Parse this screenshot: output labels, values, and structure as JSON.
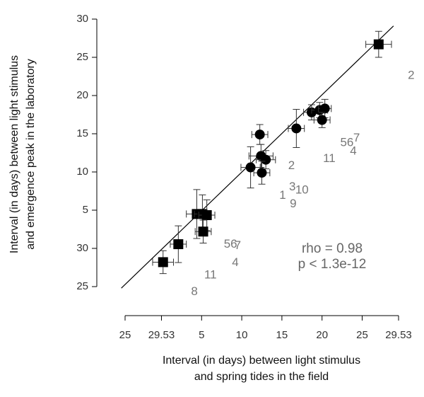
{
  "chart_data": {
    "type": "scatter",
    "x_label": [
      "Interval (in days) between light stimulus",
      "and spring tides in the field"
    ],
    "y_label": [
      "Interval (in days) between light stimulus",
      "and emergence peak in the laboratory"
    ],
    "xlim": [
      -4.53,
      29.53
    ],
    "ylim": [
      -5,
      30
    ],
    "xticks": [
      {
        "value": -4.53,
        "label": "25"
      },
      {
        "value": 0,
        "label": "29.53"
      },
      5,
      10,
      15,
      20,
      25,
      {
        "value": 29.53,
        "label": "29.53"
      }
    ],
    "yticks": [
      {
        "value": -5,
        "label": "25"
      },
      {
        "value": 0,
        "label": "30"
      },
      5,
      10,
      15,
      20,
      25,
      30
    ],
    "series": [
      {
        "marker": "circle",
        "color": "#000000",
        "x": [
          12.25,
          16.8,
          18.7,
          19.7,
          20.35,
          20.0,
          12.4,
          13.0,
          11.1,
          12.5
        ],
        "values": [
          14.9,
          15.7,
          17.8,
          18.1,
          18.3,
          16.8,
          12.1,
          11.6,
          10.6,
          9.9
        ],
        "xerr": [
          1.0,
          1.0,
          1.0,
          1.0,
          0.8,
          1.0,
          1.5,
          1.2,
          1.2,
          1.0
        ],
        "yerr": [
          1.3,
          2.5,
          1.0,
          1.0,
          1.2,
          1.0,
          1.5,
          1.2,
          2.7,
          1.5
        ]
      },
      {
        "marker": "square",
        "color": "#000000",
        "x": [
          27.05,
          4.4,
          5.1,
          5.65,
          5.2,
          2.1,
          0.2
        ],
        "values": [
          26.7,
          4.5,
          4.5,
          4.35,
          2.2,
          0.55,
          -1.8
        ],
        "xerr": [
          1.6,
          1.3,
          1.0,
          1.0,
          1.0,
          1.0,
          1.3
        ],
        "yerr": [
          1.7,
          3.2,
          2.5,
          2.0,
          1.5,
          2.4,
          1.5
        ]
      }
    ],
    "fit_line": {
      "x": [
        -5,
        28.9
      ],
      "y": [
        -5.2,
        29.1
      ],
      "color": "#000000"
    },
    "point_labels": [
      {
        "text": "2",
        "x": 31.1,
        "y": 22.6
      },
      {
        "text": "2",
        "x": 16.2,
        "y": 10.8
      },
      {
        "text": "56",
        "x": 23.1,
        "y": 13.8
      },
      {
        "text": "7",
        "x": 24.3,
        "y": 14.4
      },
      {
        "text": "4",
        "x": 23.9,
        "y": 12.7
      },
      {
        "text": "11",
        "x": 20.9,
        "y": 11.7
      },
      {
        "text": "3",
        "x": 16.3,
        "y": 8.0
      },
      {
        "text": "10",
        "x": 17.5,
        "y": 7.6
      },
      {
        "text": "1",
        "x": 15.1,
        "y": 6.9
      },
      {
        "text": "9",
        "x": 16.4,
        "y": 5.8
      },
      {
        "text": "56",
        "x": 8.6,
        "y": 0.5
      },
      {
        "text": "7",
        "x": 9.5,
        "y": 0.3
      },
      {
        "text": "4",
        "x": 9.2,
        "y": -1.9
      },
      {
        "text": "11",
        "x": 6.1,
        "y": -3.5
      },
      {
        "text": "8",
        "x": 4.1,
        "y": -5.7
      }
    ],
    "stats": [
      "rho = 0.98",
      "p < 1.3e-12"
    ]
  }
}
